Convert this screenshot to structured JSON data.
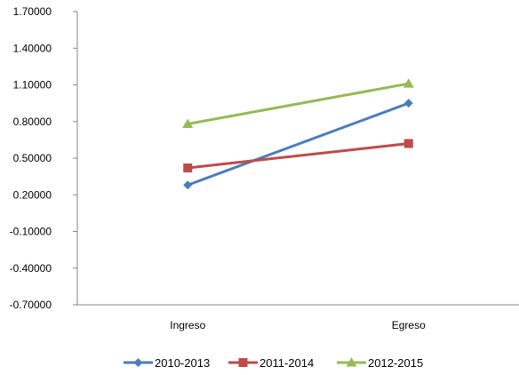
{
  "chart_data": {
    "type": "line",
    "categories": [
      "Ingreso",
      "Egreso"
    ],
    "y_ticks": [
      "1.70000",
      "1.40000",
      "1.10000",
      "0.80000",
      "0.50000",
      "0.20000",
      "-0.10000",
      "-0.40000",
      "-0.70000"
    ],
    "ylim": [
      -0.7,
      1.7
    ],
    "grid": false,
    "legend_position": "bottom",
    "series": [
      {
        "name": "2010-2013",
        "values": [
          0.28,
          0.95
        ],
        "color": "#4A7EBB",
        "marker": "diamond"
      },
      {
        "name": "2011-2014",
        "values": [
          0.42,
          0.62
        ],
        "color": "#BE4B48",
        "marker": "square"
      },
      {
        "name": "2012-2015",
        "values": [
          0.78,
          1.11
        ],
        "color": "#98B954",
        "marker": "triangle"
      }
    ]
  }
}
